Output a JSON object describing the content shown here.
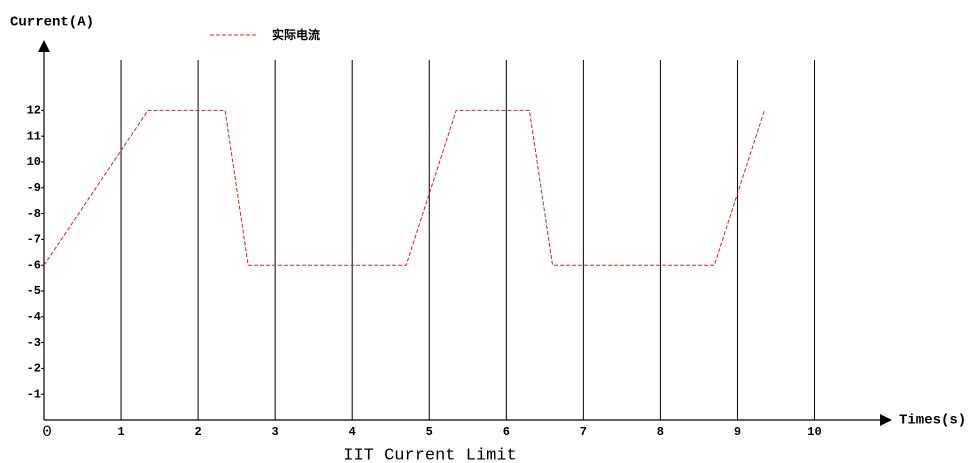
{
  "chart_data": {
    "type": "line",
    "title": "IIT Current Limit",
    "y_label": "Current(A)",
    "x_label": "Times(s)",
    "x": [
      0,
      1.35,
      2.35,
      2.45,
      2.65,
      4.7,
      5.35,
      6.3,
      6.4,
      6.6,
      8.7,
      9.35
    ],
    "series": [
      {
        "name": "实际电流",
        "color": "#e02020",
        "values": [
          6,
          12,
          12,
          10,
          6,
          6,
          12,
          12,
          10,
          6,
          6,
          12
        ]
      }
    ],
    "xlim": [
      0,
      10.85
    ],
    "ylim": [
      0,
      14.65
    ],
    "xticks": [
      0,
      1,
      2,
      3,
      4,
      5,
      6,
      7,
      8,
      9,
      10
    ],
    "yticks": [
      {
        "value": 1,
        "label": "-1"
      },
      {
        "value": 2,
        "label": "-2"
      },
      {
        "value": 3,
        "label": "-3"
      },
      {
        "value": 4,
        "label": "-4"
      },
      {
        "value": 5,
        "label": "-5"
      },
      {
        "value": 6,
        "label": "-6"
      },
      {
        "value": 7,
        "label": "-7"
      },
      {
        "value": 8,
        "label": "-8"
      },
      {
        "value": 9,
        "label": "-9"
      },
      10,
      11,
      12
    ],
    "grid": true
  }
}
